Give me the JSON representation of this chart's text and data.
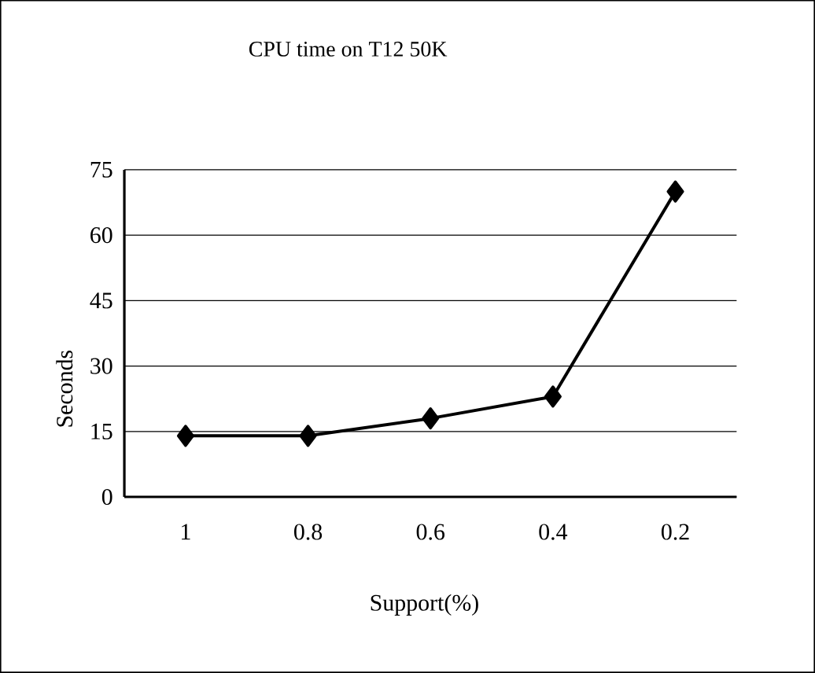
{
  "chart_data": {
    "type": "line",
    "title": "CPU time on T12 50K",
    "xlabel": "Support(%)",
    "ylabel": "Seconds",
    "categories": [
      "1",
      "0.8",
      "0.6",
      "0.4",
      "0.2"
    ],
    "values": [
      14,
      14,
      18,
      23,
      70
    ],
    "color": "#000000",
    "ylim": [
      0,
      75
    ],
    "yticks": [
      0,
      15,
      30,
      45,
      60,
      75
    ],
    "grid": "y",
    "marker": "diamond",
    "line_style": "solid"
  }
}
